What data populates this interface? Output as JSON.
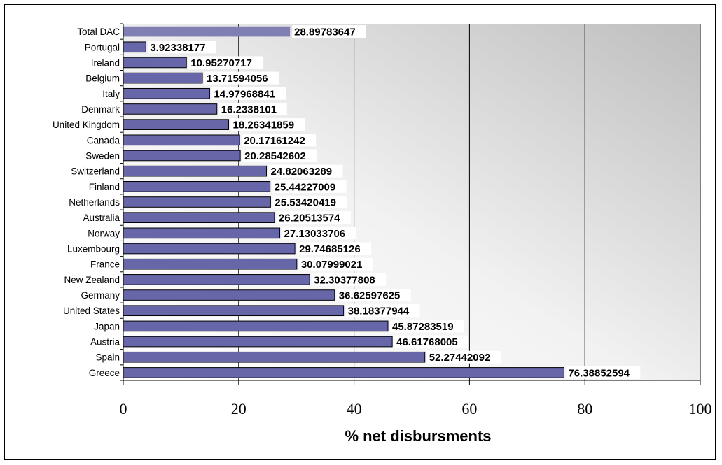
{
  "chart_data": {
    "type": "bar",
    "orientation": "horizontal",
    "title": "",
    "xlabel": "% net disbursments",
    "ylabel": "",
    "xlim": [
      0,
      100
    ],
    "xticks": [
      0,
      20,
      40,
      60,
      80,
      100
    ],
    "grid": true,
    "legend": "none",
    "categories": [
      "Total DAC",
      "Portugal",
      "Ireland",
      "Belgium",
      "Italy",
      "Denmark",
      "United Kingdom",
      "Canada",
      "Sweden",
      "Switzerland",
      "Finland",
      "Netherlands",
      "Australia",
      "Norway",
      "Luxembourg",
      "France",
      "New Zealand",
      "Germany",
      "United States",
      "Japan",
      "Austria",
      "Spain",
      "Greece"
    ],
    "values": [
      28.89783647,
      3.92338177,
      10.95270717,
      13.71594056,
      14.97968841,
      16.2338101,
      18.26341859,
      20.17161242,
      20.28542602,
      24.82063289,
      25.44227009,
      25.53420419,
      26.20513574,
      27.13033706,
      29.74685126,
      30.07999021,
      32.30377808,
      36.62597625,
      38.18377944,
      45.87283519,
      46.61768005,
      52.27442092,
      76.38852594
    ],
    "value_labels": [
      "28.89783647",
      "3.92338177",
      "10.95270717",
      "13.71594056",
      "14.97968841",
      "16.2338101",
      "18.26341859",
      "20.17161242",
      "20.28542602",
      "24.82063289",
      "25.44227009",
      "25.53420419",
      "26.20513574",
      "27.13033706",
      "29.74685126",
      "30.07999021",
      "32.30377808",
      "36.62597625",
      "38.18377944",
      "45.87283519",
      "46.61768005",
      "52.27442092",
      "76.38852594"
    ],
    "colors": {
      "bar_fill": "#6666a8",
      "bar_stroke": "#000000",
      "highlight_fill": "#7f7fb3",
      "plot_bg_light": "#ffffff",
      "plot_bg_dark": "#bdbdbd"
    }
  }
}
